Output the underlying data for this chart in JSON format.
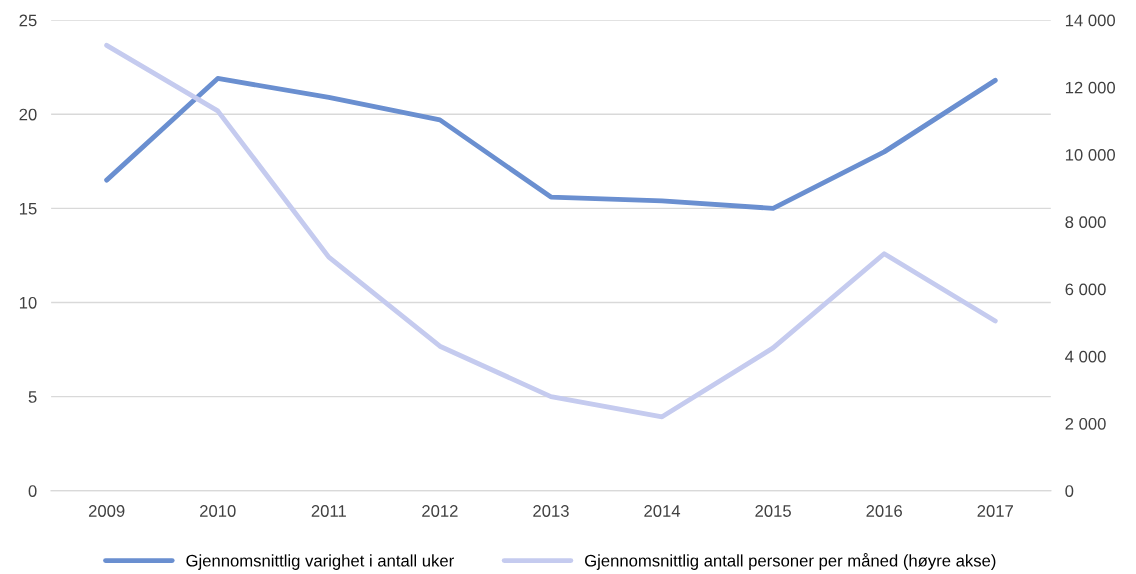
{
  "chart_data": {
    "type": "line",
    "categories": [
      "2009",
      "2010",
      "2011",
      "2012",
      "2013",
      "2014",
      "2015",
      "2016",
      "2017"
    ],
    "series": [
      {
        "name": "Gjennomsnittlig varighet i antall uker",
        "color": "#6a8fd0",
        "values": [
          16.5,
          21.9,
          20.9,
          19.7,
          15.6,
          15.4,
          15.0,
          18.0,
          21.8
        ]
      },
      {
        "name": "Gjennomsnittlig antall personer per måned (høyre akse)",
        "color": "#c5cbef",
        "axis": "y2",
        "values": [
          13250,
          11300,
          6950,
          4300,
          2800,
          2200,
          4250,
          7050,
          5050
        ]
      }
    ],
    "ylim": [
      0,
      25
    ],
    "yticks": [
      0,
      5,
      10,
      15,
      20,
      25
    ],
    "y2lim": [
      0,
      14000
    ],
    "y2ticks": [
      {
        "value": 0,
        "label": "0"
      },
      {
        "value": 2000,
        "label": "2 000"
      },
      {
        "value": 4000,
        "label": "4 000"
      },
      {
        "value": 6000,
        "label": "6 000"
      },
      {
        "value": 8000,
        "label": "8 000"
      },
      {
        "value": 10000,
        "label": "10 000"
      },
      {
        "value": 12000,
        "label": "12 000"
      },
      {
        "value": 14000,
        "label": "14 000"
      }
    ],
    "grid": "y",
    "legend": "bottom",
    "marker": "none",
    "line_style": "solid"
  }
}
